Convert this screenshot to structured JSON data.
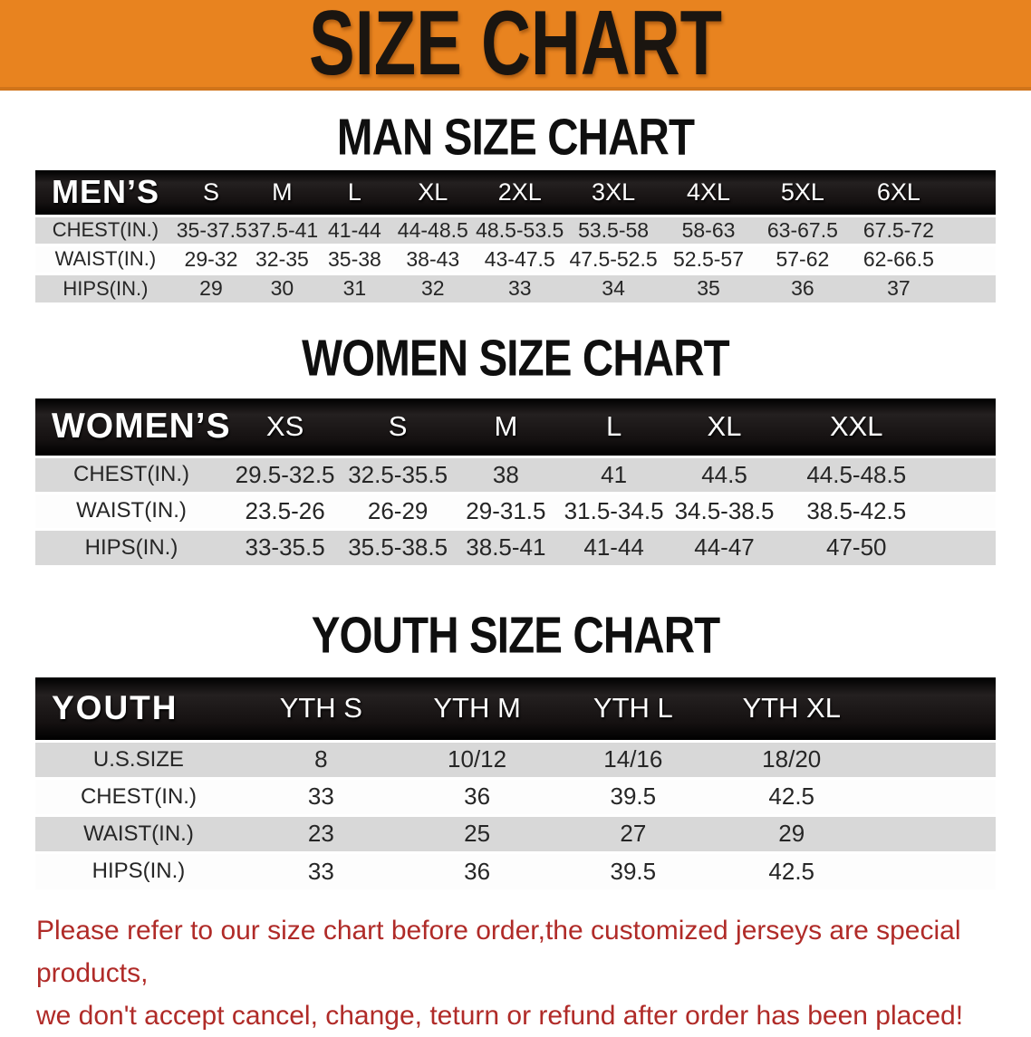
{
  "banner": {
    "title": "SIZE CHART"
  },
  "sections": [
    {
      "heading": "MAN SIZE CHART",
      "corner": "MEN’S",
      "columns": [
        "S",
        "M",
        "L",
        "XL",
        "2XL",
        "3XL",
        "4XL",
        "5XL",
        "6XL"
      ],
      "rows": [
        {
          "label": "CHEST(IN.)",
          "values": [
            "35-37.5",
            "37.5-41",
            "41-44",
            "44-48.5",
            "48.5-53.5",
            "53.5-58",
            "58-63",
            "63-67.5",
            "67.5-72"
          ]
        },
        {
          "label": "WAIST(IN.)",
          "values": [
            "29-32",
            "32-35",
            "35-38",
            "38-43",
            "43-47.5",
            "47.5-52.5",
            "52.5-57",
            "57-62",
            "62-66.5"
          ]
        },
        {
          "label": "HIPS(IN.)",
          "values": [
            "29",
            "30",
            "31",
            "32",
            "33",
            "34",
            "35",
            "36",
            "37"
          ]
        }
      ]
    },
    {
      "heading": "WOMEN SIZE CHART",
      "corner": "WOMEN’S",
      "columns": [
        "XS",
        "S",
        "M",
        "L",
        "XL",
        "XXL"
      ],
      "rows": [
        {
          "label": "CHEST(IN.)",
          "values": [
            "29.5-32.5",
            "32.5-35.5",
            "38",
            "41",
            "44.5",
            "44.5-48.5"
          ]
        },
        {
          "label": "WAIST(IN.)",
          "values": [
            "23.5-26",
            "26-29",
            "29-31.5",
            "31.5-34.5",
            "34.5-38.5",
            "38.5-42.5"
          ]
        },
        {
          "label": "HIPS(IN.)",
          "values": [
            "33-35.5",
            "35.5-38.5",
            "38.5-41",
            "41-44",
            "44-47",
            "47-50"
          ]
        }
      ]
    },
    {
      "heading": "YOUTH SIZE CHART",
      "corner": "YOUTH",
      "columns": [
        "YTH S",
        "YTH M",
        "YTH L",
        "YTH XL"
      ],
      "rows": [
        {
          "label": "U.S.SIZE",
          "values": [
            "8",
            "10/12",
            "14/16",
            "18/20"
          ]
        },
        {
          "label": "CHEST(IN.)",
          "values": [
            "33",
            "36",
            "39.5",
            "42.5"
          ]
        },
        {
          "label": "WAIST(IN.)",
          "values": [
            "23",
            "25",
            "27",
            "29"
          ]
        },
        {
          "label": "HIPS(IN.)",
          "values": [
            "33",
            "36",
            "39.5",
            "42.5"
          ]
        }
      ]
    }
  ],
  "disclaimer": {
    "line1": "Please refer to our size chart before order,the customized jerseys are special products,",
    "line2": "we don't accept cancel, change, teturn or refund after order has been placed!"
  },
  "colors": {
    "banner_orange": "#E8831F",
    "header_black": "#151111",
    "row_gray": "#D8D8D8",
    "disclaimer_red": "#B02B28"
  }
}
